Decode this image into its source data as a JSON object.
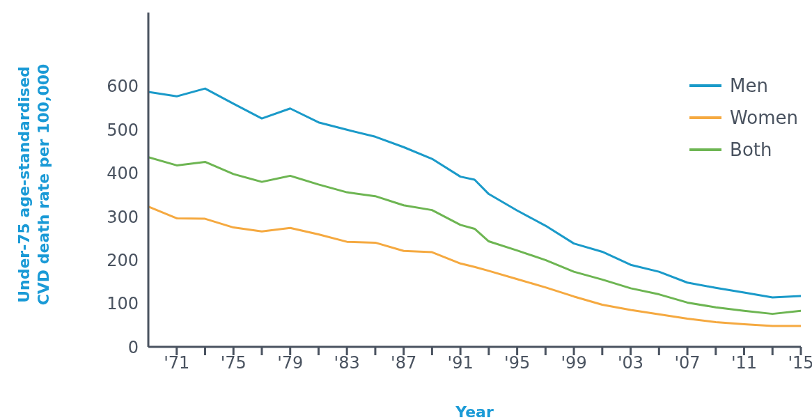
{
  "chart_data": {
    "type": "line",
    "xlabel": "Year",
    "ylabel": "Under-75 age-standardised\nCVD death rate per 100,000",
    "x": [
      1969,
      1971,
      1973,
      1975,
      1977,
      1979,
      1981,
      1983,
      1985,
      1987,
      1989,
      1991,
      1992,
      1993,
      1995,
      1997,
      1999,
      2001,
      2003,
      2005,
      2007,
      2009,
      2011,
      2013,
      2015
    ],
    "series": [
      {
        "name": "Men",
        "color": "#1a9ac9",
        "values": [
          587,
          577,
          595,
          560,
          526,
          549,
          517,
          500,
          484,
          460,
          433,
          392,
          385,
          352,
          314,
          279,
          238,
          219,
          189,
          173,
          148,
          136,
          125,
          114,
          117
        ]
      },
      {
        "name": "Women",
        "color": "#f5a940",
        "values": [
          323,
          296,
          295,
          275,
          266,
          274,
          259,
          242,
          240,
          221,
          218,
          192,
          184,
          175,
          156,
          137,
          116,
          97,
          85,
          75,
          65,
          57,
          52,
          48,
          48
        ]
      },
      {
        "name": "Both",
        "color": "#6db552",
        "values": [
          437,
          418,
          426,
          398,
          380,
          394,
          374,
          356,
          347,
          326,
          315,
          281,
          272,
          243,
          222,
          200,
          173,
          155,
          135,
          121,
          102,
          91,
          83,
          76,
          83
        ]
      }
    ],
    "xlim": [
      1969,
      2015
    ],
    "xticks": [
      {
        "value": 1971,
        "label": "'71"
      },
      {
        "value": 1973,
        "label": null
      },
      {
        "value": 1975,
        "label": "'75"
      },
      {
        "value": 1977,
        "label": null
      },
      {
        "value": 1979,
        "label": "'79"
      },
      {
        "value": 1981,
        "label": null
      },
      {
        "value": 1983,
        "label": "'83"
      },
      {
        "value": 1985,
        "label": null
      },
      {
        "value": 1987,
        "label": "'87"
      },
      {
        "value": 1989,
        "label": null
      },
      {
        "value": 1991,
        "label": "'91"
      },
      {
        "value": 1993,
        "label": null
      },
      {
        "value": 1995,
        "label": "'95"
      },
      {
        "value": 1997,
        "label": null
      },
      {
        "value": 1999,
        "label": "'99"
      },
      {
        "value": 2001,
        "label": null
      },
      {
        "value": 2003,
        "label": "'03"
      },
      {
        "value": 2005,
        "label": null
      },
      {
        "value": 2007,
        "label": "'07"
      },
      {
        "value": 2009,
        "label": null
      },
      {
        "value": 2011,
        "label": "'11"
      },
      {
        "value": 2013,
        "label": null
      },
      {
        "value": 2015,
        "label": "'15"
      }
    ],
    "ylim": [
      0,
      770
    ],
    "yticks": [
      0,
      100,
      200,
      300,
      400,
      500,
      600
    ],
    "legend": "top right",
    "marker": "none",
    "line_style": "solid"
  }
}
